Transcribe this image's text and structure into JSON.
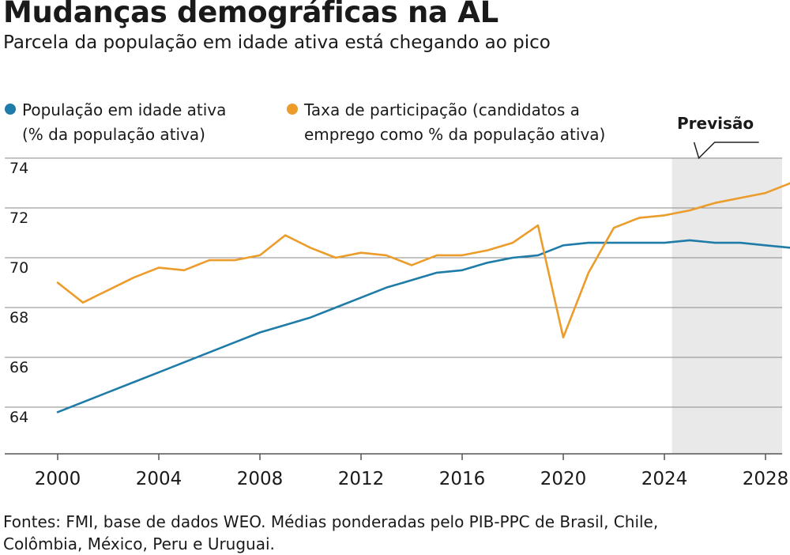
{
  "title": "Mudanças demográficas na AL",
  "subtitle": "Parcela da população em idade ativa está chegando ao pico",
  "legend": [
    {
      "line1": "População em idade ativa",
      "line2": "(% da população ativa)",
      "color": "#1f7ca8"
    },
    {
      "line1": "Taxa de participação (candidatos a",
      "line2": "emprego como % da população ativa)",
      "color": "#eb9c2a"
    }
  ],
  "forecast_label": "Previsão",
  "footer": {
    "line1": "Fontes: FMI, base de dados WEO. Médias ponderadas pelo PIB-PPC de Brasil, Chile,",
    "line2": "Colômbia, México, Peru e Uruguai."
  },
  "chart_data": {
    "type": "line",
    "x_ticks": [
      2000,
      2004,
      2008,
      2012,
      2016,
      2020,
      2024,
      2028
    ],
    "y_ticks": [
      64,
      66,
      68,
      70,
      72,
      74
    ],
    "xlim": [
      1999,
      2029
    ],
    "ylim": [
      62.3,
      74
    ],
    "forecast_start": 2024.3,
    "grid": true,
    "series": [
      {
        "name": "População em idade ativa (% da população ativa)",
        "color": "#1f7ca8",
        "x": [
          2000,
          2001,
          2002,
          2003,
          2004,
          2005,
          2006,
          2007,
          2008,
          2009,
          2010,
          2011,
          2012,
          2013,
          2014,
          2015,
          2016,
          2017,
          2018,
          2019,
          2020,
          2021,
          2022,
          2023,
          2024,
          2025,
          2026,
          2027,
          2028,
          2029
        ],
        "values": [
          63.8,
          64.2,
          64.6,
          65.0,
          65.4,
          65.8,
          66.2,
          66.6,
          67.0,
          67.3,
          67.6,
          68.0,
          68.4,
          68.8,
          69.1,
          69.4,
          69.5,
          69.8,
          70.0,
          70.1,
          70.5,
          70.6,
          70.6,
          70.6,
          70.6,
          70.7,
          70.6,
          70.6,
          70.5,
          70.4
        ]
      },
      {
        "name": "Taxa de participação (candidatos a emprego como % da população ativa)",
        "color": "#eb9c2a",
        "x": [
          2000,
          2001,
          2002,
          2003,
          2004,
          2005,
          2006,
          2007,
          2008,
          2009,
          2010,
          2011,
          2012,
          2013,
          2014,
          2015,
          2016,
          2017,
          2018,
          2019,
          2020,
          2021,
          2022,
          2023,
          2024,
          2025,
          2026,
          2027,
          2028,
          2029
        ],
        "values": [
          69.0,
          68.2,
          68.7,
          69.2,
          69.6,
          69.5,
          69.9,
          69.9,
          70.1,
          70.9,
          70.4,
          70.0,
          70.2,
          70.1,
          69.7,
          70.1,
          70.1,
          70.3,
          70.6,
          71.3,
          66.8,
          69.4,
          71.2,
          71.6,
          71.7,
          71.9,
          72.2,
          72.4,
          72.6,
          73.0
        ]
      }
    ]
  }
}
